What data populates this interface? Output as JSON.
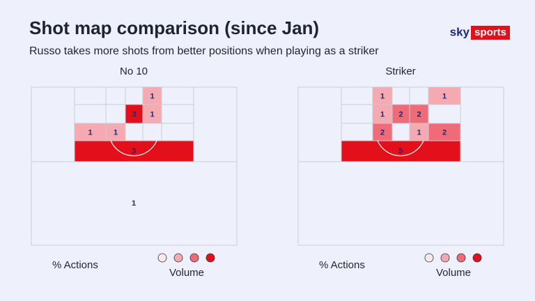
{
  "header": {
    "title": "Shot map comparison (since Jan)",
    "subtitle": "Russo takes more shots from better positions when playing as a striker",
    "logo": [
      "sky",
      "sports"
    ]
  },
  "scale_colors": [
    "#fde9ea",
    "#f5aab2",
    "#ef6b77",
    "#e3101c"
  ],
  "panels": [
    {
      "title": "No 10",
      "zones": [
        [
          null,
          null,
          null,
          1,
          null
        ],
        [
          null,
          null,
          3,
          1,
          null
        ],
        [
          1,
          1,
          null,
          null,
          null
        ]
      ],
      "box": 3,
      "outside": 1,
      "legend": {
        "label": "% Actions",
        "volume": "Volume"
      }
    },
    {
      "title": "Striker",
      "zones": [
        [
          null,
          1,
          null,
          null,
          1
        ],
        [
          null,
          1,
          2,
          2,
          null
        ],
        [
          null,
          2,
          null,
          1,
          2
        ]
      ],
      "box": 5,
      "legend": {
        "label": "% Actions",
        "volume": "Volume"
      }
    }
  ]
}
